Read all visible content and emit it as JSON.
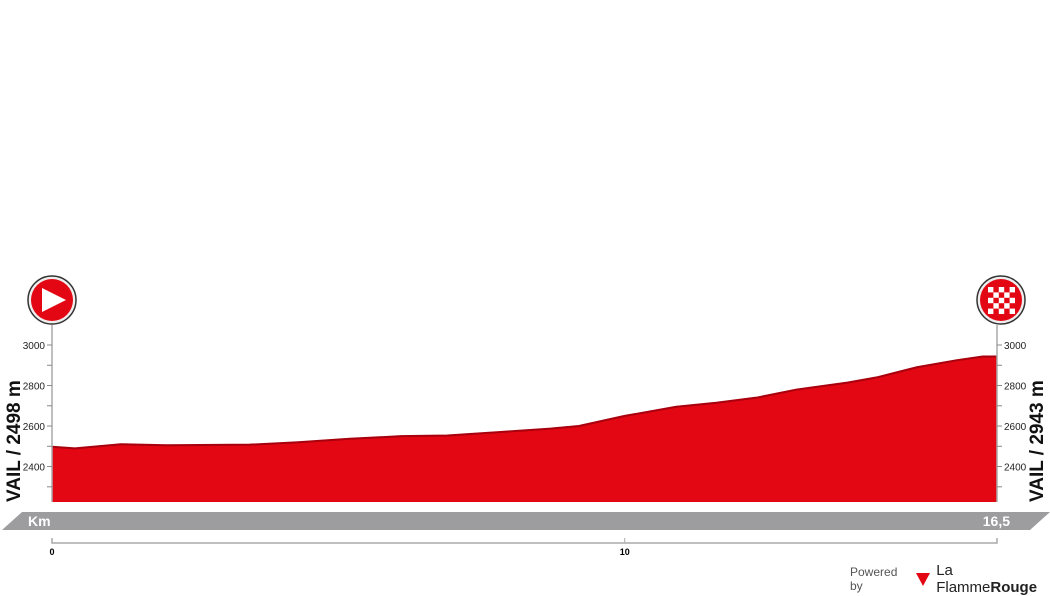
{
  "chart_data": {
    "type": "area",
    "title": "",
    "xlabel": "Km",
    "ylabel": "",
    "x_total_label": "16,5",
    "xlim": [
      0,
      16.5
    ],
    "ylim": [
      2225,
      3000
    ],
    "x_ticks": [
      0,
      10
    ],
    "x_tick_labels": [
      "0",
      "10"
    ],
    "y_ticks": [
      2300,
      2400,
      2500,
      2600,
      2700,
      2800,
      2900,
      3000
    ],
    "y_tick_labels": {
      "2400": "2400",
      "2600": "2600",
      "2800": "2800",
      "3000": "3000"
    },
    "start_label": "VAIL / 2498 m",
    "finish_label": "VAIL / 2943 m",
    "grid": false,
    "fill_color": "#e30613",
    "series": [
      {
        "x": [
          0,
          0.4,
          1.2,
          2.0,
          3.45,
          4.3,
          5.2,
          6.1,
          6.9,
          7.8,
          8.7,
          9.2,
          10.0,
          10.9,
          11.6,
          12.3,
          13.0,
          13.9,
          14.4,
          15.1,
          15.8,
          16.25,
          16.5
        ],
        "y": [
          2498,
          2490,
          2510,
          2505,
          2508,
          2520,
          2537,
          2550,
          2553,
          2570,
          2587,
          2600,
          2650,
          2695,
          2715,
          2740,
          2780,
          2815,
          2840,
          2890,
          2925,
          2943,
          2943
        ]
      }
    ]
  },
  "icons": {
    "start": "start-play-icon",
    "finish": "finish-checkered-flag-icon"
  },
  "credit": {
    "powered_by": "Powered by",
    "brand_light": "La Flamme",
    "brand_bold": "Rouge"
  }
}
